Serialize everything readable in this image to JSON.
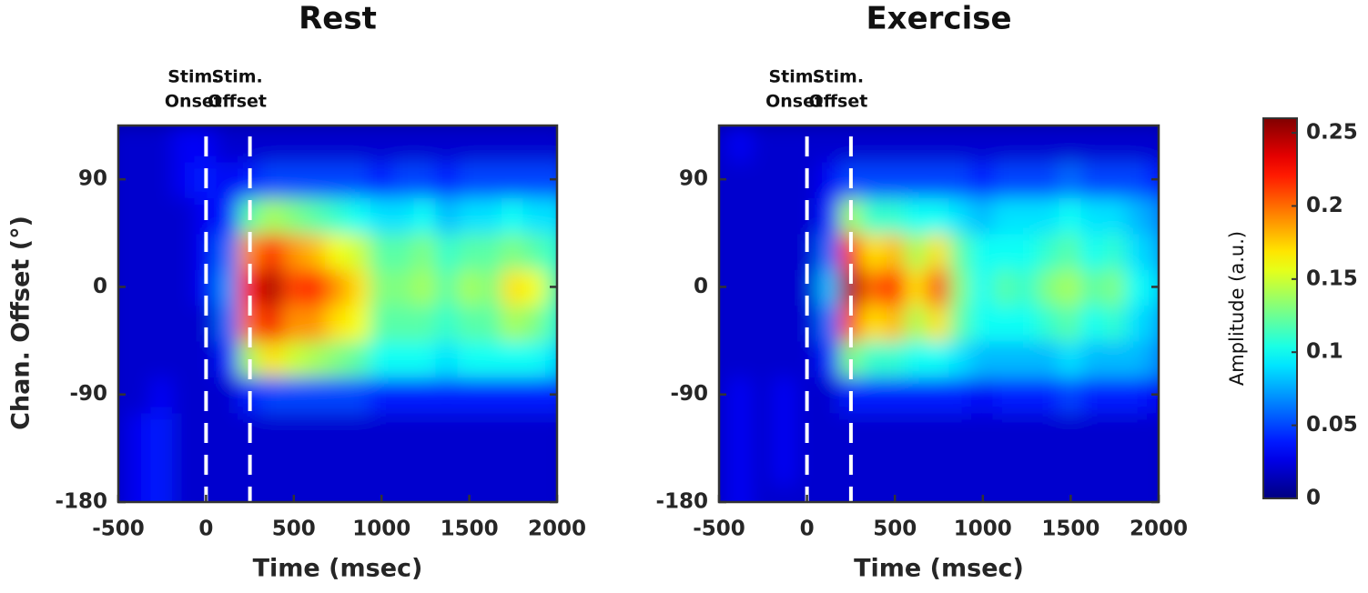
{
  "chart_data": [
    {
      "type": "heatmap",
      "title": "Rest",
      "xlabel": "Time (msec)",
      "ylabel": "Chan. Offset (°)",
      "x": [
        -500,
        -375,
        -250,
        -125,
        0,
        125,
        250,
        375,
        500,
        625,
        750,
        875,
        1000,
        1125,
        1250,
        1375,
        1500,
        1625,
        1750,
        1875,
        2000
      ],
      "y": [
        -180,
        -150,
        -120,
        -90,
        -60,
        -30,
        0,
        30,
        60,
        90,
        120
      ],
      "z": [
        [
          0.02,
          0.03,
          0.04,
          0.02,
          0.02,
          0.02,
          0.02,
          0.02,
          0.02,
          0.02,
          0.02,
          0.02,
          0.02,
          0.02,
          0.02,
          0.02,
          0.02,
          0.02,
          0.02,
          0.02,
          0.02
        ],
        [
          0.02,
          0.03,
          0.04,
          0.02,
          0.02,
          0.02,
          0.02,
          0.02,
          0.02,
          0.02,
          0.02,
          0.02,
          0.02,
          0.02,
          0.02,
          0.02,
          0.02,
          0.02,
          0.02,
          0.02,
          0.02
        ],
        [
          0.02,
          0.03,
          0.04,
          0.02,
          0.02,
          0.02,
          0.02,
          0.02,
          0.02,
          0.02,
          0.02,
          0.02,
          0.02,
          0.02,
          0.02,
          0.02,
          0.02,
          0.02,
          0.02,
          0.02,
          0.02
        ],
        [
          0.02,
          0.02,
          0.03,
          0.02,
          0.02,
          0.02,
          0.04,
          0.05,
          0.05,
          0.05,
          0.05,
          0.05,
          0.04,
          0.04,
          0.04,
          0.04,
          0.04,
          0.04,
          0.04,
          0.04,
          0.04
        ],
        [
          0.02,
          0.02,
          0.02,
          0.02,
          0.02,
          0.04,
          0.14,
          0.17,
          0.15,
          0.14,
          0.13,
          0.12,
          0.1,
          0.1,
          0.1,
          0.09,
          0.1,
          0.1,
          0.1,
          0.1,
          0.09
        ],
        [
          0.02,
          0.02,
          0.02,
          0.02,
          0.02,
          0.06,
          0.2,
          0.23,
          0.19,
          0.19,
          0.17,
          0.16,
          0.12,
          0.12,
          0.12,
          0.11,
          0.12,
          0.12,
          0.14,
          0.13,
          0.11
        ],
        [
          0.02,
          0.02,
          0.02,
          0.02,
          0.03,
          0.07,
          0.22,
          0.25,
          0.21,
          0.22,
          0.19,
          0.17,
          0.13,
          0.13,
          0.14,
          0.12,
          0.14,
          0.13,
          0.17,
          0.16,
          0.12
        ],
        [
          0.02,
          0.02,
          0.02,
          0.02,
          0.03,
          0.06,
          0.19,
          0.22,
          0.19,
          0.18,
          0.16,
          0.15,
          0.12,
          0.12,
          0.13,
          0.11,
          0.12,
          0.12,
          0.13,
          0.12,
          0.11
        ],
        [
          0.02,
          0.02,
          0.02,
          0.02,
          0.03,
          0.04,
          0.12,
          0.14,
          0.13,
          0.12,
          0.11,
          0.1,
          0.09,
          0.09,
          0.1,
          0.08,
          0.09,
          0.09,
          0.1,
          0.09,
          0.09
        ],
        [
          0.02,
          0.02,
          0.02,
          0.03,
          0.04,
          0.03,
          0.04,
          0.05,
          0.05,
          0.05,
          0.05,
          0.05,
          0.04,
          0.05,
          0.05,
          0.04,
          0.05,
          0.05,
          0.05,
          0.05,
          0.05
        ],
        [
          0.02,
          0.02,
          0.02,
          0.03,
          0.03,
          0.02,
          0.02,
          0.02,
          0.02,
          0.02,
          0.02,
          0.02,
          0.02,
          0.02,
          0.02,
          0.02,
          0.02,
          0.02,
          0.02,
          0.02,
          0.02
        ]
      ],
      "xlim": [
        -500,
        2000
      ],
      "ylim": [
        -180,
        135
      ],
      "xticks": [
        -500,
        0,
        500,
        1000,
        1500,
        2000
      ],
      "yticks": [
        -180,
        -90,
        0,
        90
      ],
      "annotations": [
        {
          "x": 0,
          "label": [
            "Stim.",
            "Onset"
          ]
        },
        {
          "x": 250,
          "label": [
            "Stim.",
            "Offset"
          ]
        }
      ]
    },
    {
      "type": "heatmap",
      "title": "Exercise",
      "xlabel": "Time (msec)",
      "x": [
        -500,
        -375,
        -250,
        -125,
        0,
        125,
        250,
        375,
        500,
        625,
        750,
        875,
        1000,
        1125,
        1250,
        1375,
        1500,
        1625,
        1750,
        1875,
        2000
      ],
      "y": [
        -180,
        -150,
        -120,
        -90,
        -60,
        -30,
        0,
        30,
        60,
        90,
        120
      ],
      "z": [
        [
          0.02,
          0.03,
          0.02,
          0.02,
          0.02,
          0.02,
          0.02,
          0.02,
          0.02,
          0.02,
          0.02,
          0.02,
          0.02,
          0.02,
          0.02,
          0.02,
          0.02,
          0.02,
          0.02,
          0.02,
          0.02
        ],
        [
          0.02,
          0.03,
          0.02,
          0.03,
          0.02,
          0.02,
          0.02,
          0.02,
          0.02,
          0.02,
          0.02,
          0.02,
          0.02,
          0.02,
          0.02,
          0.02,
          0.02,
          0.02,
          0.02,
          0.02,
          0.02
        ],
        [
          0.02,
          0.03,
          0.02,
          0.03,
          0.02,
          0.02,
          0.02,
          0.02,
          0.02,
          0.02,
          0.02,
          0.02,
          0.02,
          0.02,
          0.02,
          0.02,
          0.02,
          0.02,
          0.02,
          0.02,
          0.02
        ],
        [
          0.02,
          0.03,
          0.02,
          0.03,
          0.02,
          0.02,
          0.04,
          0.04,
          0.04,
          0.04,
          0.04,
          0.04,
          0.03,
          0.04,
          0.04,
          0.04,
          0.05,
          0.04,
          0.04,
          0.04,
          0.03
        ],
        [
          0.02,
          0.02,
          0.02,
          0.02,
          0.02,
          0.04,
          0.13,
          0.11,
          0.11,
          0.1,
          0.1,
          0.09,
          0.08,
          0.08,
          0.08,
          0.08,
          0.09,
          0.08,
          0.08,
          0.08,
          0.07
        ],
        [
          0.02,
          0.02,
          0.02,
          0.02,
          0.02,
          0.06,
          0.21,
          0.17,
          0.18,
          0.14,
          0.17,
          0.12,
          0.1,
          0.1,
          0.1,
          0.11,
          0.12,
          0.1,
          0.11,
          0.09,
          0.08
        ],
        [
          0.02,
          0.02,
          0.02,
          0.02,
          0.02,
          0.08,
          0.25,
          0.2,
          0.22,
          0.17,
          0.21,
          0.13,
          0.1,
          0.12,
          0.11,
          0.13,
          0.14,
          0.12,
          0.13,
          0.1,
          0.09
        ],
        [
          0.02,
          0.02,
          0.02,
          0.02,
          0.02,
          0.06,
          0.22,
          0.17,
          0.18,
          0.14,
          0.17,
          0.12,
          0.1,
          0.1,
          0.1,
          0.11,
          0.12,
          0.1,
          0.11,
          0.09,
          0.08
        ],
        [
          0.02,
          0.02,
          0.02,
          0.02,
          0.02,
          0.04,
          0.14,
          0.11,
          0.11,
          0.1,
          0.1,
          0.09,
          0.08,
          0.09,
          0.09,
          0.09,
          0.1,
          0.09,
          0.09,
          0.08,
          0.07
        ],
        [
          0.02,
          0.02,
          0.02,
          0.02,
          0.02,
          0.03,
          0.05,
          0.05,
          0.05,
          0.05,
          0.05,
          0.05,
          0.04,
          0.05,
          0.05,
          0.05,
          0.06,
          0.05,
          0.05,
          0.05,
          0.04
        ],
        [
          0.02,
          0.03,
          0.02,
          0.02,
          0.02,
          0.02,
          0.02,
          0.02,
          0.02,
          0.02,
          0.02,
          0.02,
          0.02,
          0.02,
          0.02,
          0.02,
          0.02,
          0.02,
          0.02,
          0.02,
          0.02
        ]
      ],
      "xlim": [
        -500,
        2000
      ],
      "ylim": [
        -180,
        135
      ],
      "xticks": [
        -500,
        0,
        500,
        1000,
        1500,
        2000
      ],
      "yticks": [
        -180,
        -90,
        0,
        90
      ],
      "annotations": [
        {
          "x": 0,
          "label": [
            "Stim.",
            "Onset"
          ]
        },
        {
          "x": 250,
          "label": [
            "Stim.",
            "Offset"
          ]
        }
      ]
    }
  ],
  "colorbar": {
    "label": "Amplitude (a.u.)",
    "colormap": "jet",
    "clim": [
      0,
      0.26
    ],
    "ticks": [
      0,
      0.05,
      0.1,
      0.15,
      0.2,
      0.25
    ]
  }
}
